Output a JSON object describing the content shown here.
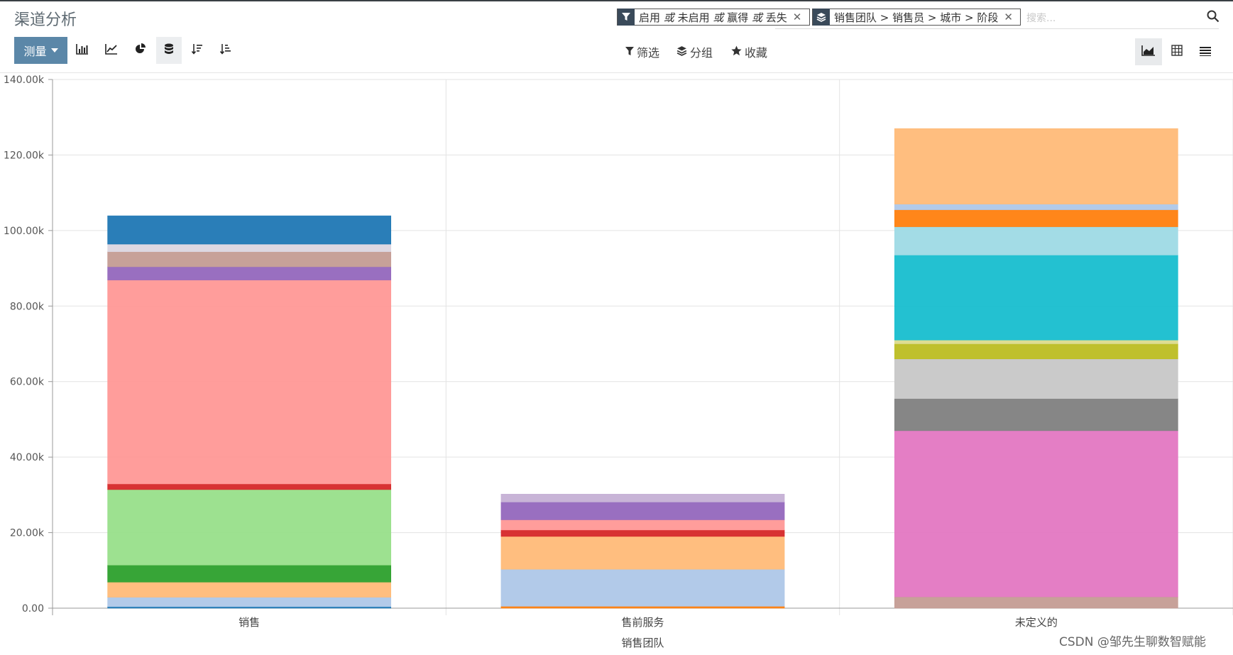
{
  "title": "渠道分析",
  "search": {
    "filter_facet": {
      "parts": [
        "启用",
        "或",
        "未启用",
        "或",
        "赢得",
        "或",
        "丢失"
      ],
      "icon": "filter-icon"
    },
    "group_facet": {
      "text": "销售团队 > 销售员 > 城市 > 阶段",
      "icon": "layers-icon"
    },
    "placeholder": "搜索...",
    "icon": "search-icon"
  },
  "toolbar": {
    "measure_label": "测量",
    "tools": [
      "bar-chart-icon",
      "line-chart-icon",
      "pie-chart-icon",
      "stack-icon",
      "sort-desc-icon",
      "sort-asc-icon"
    ],
    "filter_label": "筛选",
    "group_label": "分组",
    "favorites_label": "收藏",
    "views": [
      "graph-view-icon",
      "pivot-view-icon",
      "list-view-icon"
    ]
  },
  "chart_data": {
    "type": "bar",
    "stacked": true,
    "categories": [
      "销售",
      "售前服务",
      "未定义的"
    ],
    "xlabel": "销售团队",
    "ylabel": "",
    "ylim": [
      0,
      140000
    ],
    "yticks": [
      "0.00",
      "20.00k",
      "40.00k",
      "60.00k",
      "80.00k",
      "100.00k",
      "120.00k",
      "140.00k"
    ],
    "grid": true,
    "stacks": [
      [
        {
          "value": 400,
          "color": "#1f77b4"
        },
        {
          "value": 2500,
          "color": "#aec7e8"
        },
        {
          "value": 4000,
          "color": "#ffbb78"
        },
        {
          "value": 4500,
          "color": "#2ca02c"
        },
        {
          "value": 20000,
          "color": "#98df8a"
        },
        {
          "value": 1500,
          "color": "#d62728"
        },
        {
          "value": 54000,
          "color": "#ff9896"
        },
        {
          "value": 3500,
          "color": "#9467bd"
        },
        {
          "value": 4000,
          "color": "#c49c94"
        },
        {
          "value": 2000,
          "color": "#dbd6e0"
        },
        {
          "value": 7500,
          "color": "#1f77b4"
        }
      ],
      [
        {
          "value": 500,
          "color": "#ff7f0e"
        },
        {
          "value": 9800,
          "color": "#aec7e8"
        },
        {
          "value": 8700,
          "color": "#ffbb78"
        },
        {
          "value": 1700,
          "color": "#d62728"
        },
        {
          "value": 2700,
          "color": "#ff9896"
        },
        {
          "value": 4700,
          "color": "#9467bd"
        },
        {
          "value": 2100,
          "color": "#c5b0d5"
        }
      ],
      [
        {
          "value": 3000,
          "color": "#c49c94"
        },
        {
          "value": 44000,
          "color": "#e377c2"
        },
        {
          "value": 8500,
          "color": "#7f7f7f"
        },
        {
          "value": 10500,
          "color": "#c7c7c7"
        },
        {
          "value": 4000,
          "color": "#bcbd22"
        },
        {
          "value": 1000,
          "color": "#dbdb8d"
        },
        {
          "value": 22500,
          "color": "#17becf"
        },
        {
          "value": 7500,
          "color": "#9edae5"
        },
        {
          "value": 4500,
          "color": "#ff7f0e"
        },
        {
          "value": 1500,
          "color": "#aec7e8"
        },
        {
          "value": 20000,
          "color": "#ffbb78"
        }
      ]
    ]
  },
  "watermark": "CSDN @邹先生聊数智赋能"
}
